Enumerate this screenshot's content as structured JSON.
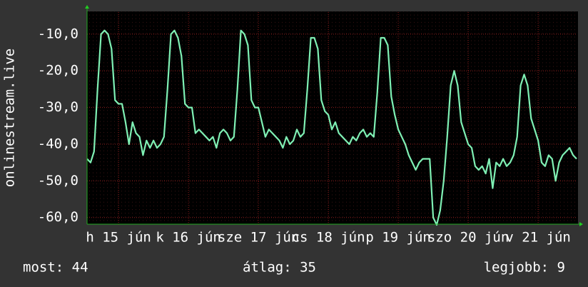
{
  "chart_data": {
    "type": "line",
    "ylabel": "onlinestream.live",
    "color": "#7ff0b4",
    "values": [
      -44,
      -45,
      -42,
      -25,
      -10,
      -9,
      -10,
      -14,
      -28,
      -29,
      -29,
      -34,
      -40,
      -34,
      -37,
      -38,
      -43,
      -39,
      -41,
      -39,
      -41,
      -40,
      -38,
      -25,
      -10,
      -9,
      -11,
      -16,
      -29,
      -30,
      -30,
      -37,
      -36,
      -37,
      -38,
      -39,
      -38,
      -41,
      -37,
      -36,
      -37,
      -39,
      -38,
      -25,
      -9,
      -10,
      -13,
      -28,
      -30,
      -30,
      -34,
      -38,
      -36,
      -37,
      -38,
      -39,
      -41,
      -38,
      -40,
      -39,
      -36,
      -38,
      -37,
      -25,
      -11,
      -11,
      -14,
      -28,
      -31,
      -32,
      -36,
      -34,
      -37,
      -38,
      -39,
      -40,
      -38,
      -39,
      -37,
      -36,
      -38,
      -37,
      -38,
      -26,
      -11,
      -11,
      -13,
      -27,
      -32,
      -36,
      -38,
      -40,
      -43,
      -45,
      -47,
      -45,
      -44,
      -44,
      -44,
      -60,
      -62,
      -58,
      -50,
      -38,
      -24,
      -20,
      -24,
      -34,
      -37,
      -40,
      -41,
      -46,
      -47,
      -46,
      -48,
      -44,
      -52,
      -45,
      -46,
      -44,
      -46,
      -45,
      -43,
      -38,
      -24,
      -21,
      -24,
      -33,
      -36,
      -39,
      -45,
      -46,
      -43,
      -44,
      -50,
      -45,
      -43,
      -42,
      -41,
      -43,
      -44
    ],
    "xlim": [
      0,
      140
    ],
    "xticks": [
      {
        "value": 9,
        "label": "h 15 jún"
      },
      {
        "value": 29,
        "label": "k 16 jún"
      },
      {
        "value": 49,
        "label": "sze 17 jún"
      },
      {
        "value": 69,
        "label": "cs 18 jún"
      },
      {
        "value": 89,
        "label": "p 19 jún"
      },
      {
        "value": 109,
        "label": "szo 20 jún"
      },
      {
        "value": 129,
        "label": "v 21 jún"
      }
    ],
    "ylim": [
      -62,
      -4
    ],
    "yticks": [
      {
        "value": -60,
        "label": "-60,0"
      },
      {
        "value": -50,
        "label": "-50,0"
      },
      {
        "value": -40,
        "label": "-40,0"
      },
      {
        "value": -30,
        "label": "-30,0"
      },
      {
        "value": -20,
        "label": "-20,0"
      },
      {
        "value": -10,
        "label": "-10,0"
      }
    ],
    "grid": true,
    "stats": [
      "most: 44",
      "átlag: 35",
      "legjobb: 9"
    ]
  }
}
